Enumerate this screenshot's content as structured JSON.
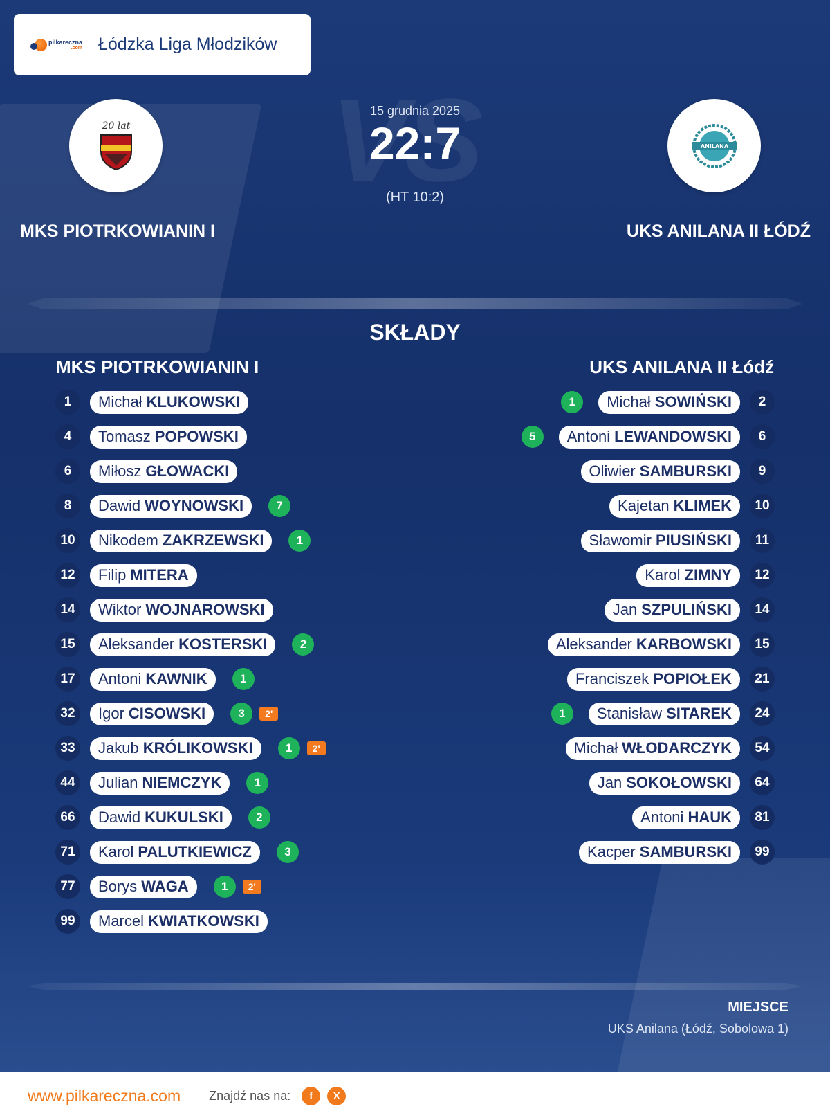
{
  "league": {
    "name": "Łódzka Liga Młodzików",
    "brand_main": "pilkareczna",
    "brand_sub": ".com"
  },
  "match": {
    "date": "15 grudnia 2025",
    "score": "22:7",
    "halftime": "(HT 10:2)",
    "vs_text": "VS",
    "home": {
      "name": "MKS PIOTRKOWIANIN I",
      "logo_text": "20 lat"
    },
    "away": {
      "name": "UKS ANILANA II ŁÓDŹ",
      "logo_text": "ANILANA"
    }
  },
  "lineups": {
    "title": "SKŁADY",
    "home": {
      "title": "MKS PIOTRKOWIANIN I",
      "players": [
        {
          "num": "1",
          "first": "Michał",
          "last": "KLUKOWSKI",
          "goals": "",
          "susp": ""
        },
        {
          "num": "4",
          "first": "Tomasz",
          "last": "POPOWSKI",
          "goals": "",
          "susp": ""
        },
        {
          "num": "6",
          "first": "Miłosz",
          "last": "GŁOWACKI",
          "goals": "",
          "susp": ""
        },
        {
          "num": "8",
          "first": "Dawid",
          "last": "WOYNOWSKI",
          "goals": "7",
          "susp": ""
        },
        {
          "num": "10",
          "first": "Nikodem",
          "last": "ZAKRZEWSKI",
          "goals": "1",
          "susp": ""
        },
        {
          "num": "12",
          "first": "Filip",
          "last": "MITERA",
          "goals": "",
          "susp": ""
        },
        {
          "num": "14",
          "first": "Wiktor",
          "last": "WOJNAROWSKI",
          "goals": "",
          "susp": ""
        },
        {
          "num": "15",
          "first": "Aleksander",
          "last": "KOSTERSKI",
          "goals": "2",
          "susp": ""
        },
        {
          "num": "17",
          "first": "Antoni",
          "last": "KAWNIK",
          "goals": "1",
          "susp": ""
        },
        {
          "num": "32",
          "first": "Igor",
          "last": "CISOWSKI",
          "goals": "3",
          "susp": "2'"
        },
        {
          "num": "33",
          "first": "Jakub",
          "last": "KRÓLIKOWSKI",
          "goals": "1",
          "susp": "2'"
        },
        {
          "num": "44",
          "first": "Julian",
          "last": "NIEMCZYK",
          "goals": "1",
          "susp": ""
        },
        {
          "num": "66",
          "first": "Dawid",
          "last": "KUKULSKI",
          "goals": "2",
          "susp": ""
        },
        {
          "num": "71",
          "first": "Karol",
          "last": "PALUTKIEWICZ",
          "goals": "3",
          "susp": ""
        },
        {
          "num": "77",
          "first": "Borys",
          "last": "WAGA",
          "goals": "1",
          "susp": "2'"
        },
        {
          "num": "99",
          "first": "Marcel",
          "last": "KWIATKOWSKI",
          "goals": "",
          "susp": ""
        }
      ]
    },
    "away": {
      "title": "UKS ANILANA II Łódź",
      "players": [
        {
          "num": "2",
          "first": "Michał",
          "last": "SOWIŃSKI",
          "goals": "1"
        },
        {
          "num": "6",
          "first": "Antoni",
          "last": "LEWANDOWSKI",
          "goals": "5"
        },
        {
          "num": "9",
          "first": "Oliwier",
          "last": "SAMBURSKI",
          "goals": ""
        },
        {
          "num": "10",
          "first": "Kajetan",
          "last": "KLIMEK",
          "goals": ""
        },
        {
          "num": "11",
          "first": "Sławomir",
          "last": "PIUSIŃSKI",
          "goals": ""
        },
        {
          "num": "12",
          "first": "Karol",
          "last": "ZIMNY",
          "goals": ""
        },
        {
          "num": "14",
          "first": "Jan",
          "last": "SZPULIŃSKI",
          "goals": ""
        },
        {
          "num": "15",
          "first": "Aleksander",
          "last": "KARBOWSKI",
          "goals": ""
        },
        {
          "num": "21",
          "first": "Franciszek",
          "last": "POPIOŁEK",
          "goals": ""
        },
        {
          "num": "24",
          "first": "Stanisław",
          "last": "SITAREK",
          "goals": "1"
        },
        {
          "num": "54",
          "first": "Michał",
          "last": "WŁODARCZYK",
          "goals": ""
        },
        {
          "num": "64",
          "first": "Jan",
          "last": "SOKOŁOWSKI",
          "goals": ""
        },
        {
          "num": "81",
          "first": "Antoni",
          "last": "HAUK",
          "goals": ""
        },
        {
          "num": "99",
          "first": "Kacper",
          "last": "SAMBURSKI",
          "goals": ""
        }
      ]
    }
  },
  "venue": {
    "label": "MIEJSCE",
    "value": "UKS Anilana (Łódź, Sobolowa 1)"
  },
  "footer": {
    "url": "www.pilkareczna.com",
    "find_us": "Znajdź nas na:",
    "facebook": "f",
    "x": "X"
  },
  "colors": {
    "accent": "#f07a1c",
    "goal": "#1eb35a",
    "background": "#1c3a78"
  }
}
